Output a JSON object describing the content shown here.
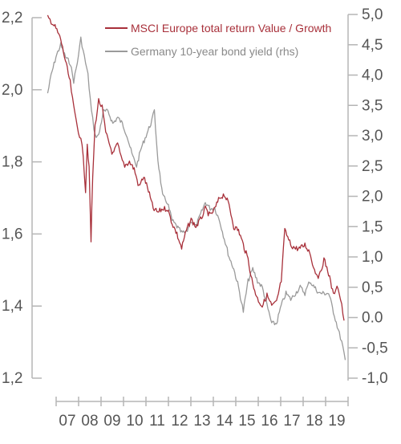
{
  "chart_data": {
    "type": "line",
    "title": "",
    "legend": {
      "position": "top-right",
      "entries": [
        "MSCI Europe total return Value / Growth",
        "Germany 10-year bond yield (rhs)"
      ]
    },
    "x_axis": {
      "tick_labels": [
        "07",
        "08",
        "09",
        "10",
        "11",
        "12",
        "13",
        "14",
        "15",
        "16",
        "17",
        "18",
        "19"
      ],
      "range": [
        2006.7,
        2019.55
      ]
    },
    "y_left": {
      "range": [
        1.2,
        2.2
      ],
      "ticks": [
        1.2,
        1.4,
        1.6,
        1.8,
        2.0,
        2.2
      ],
      "tick_labels": [
        "1,2",
        "1,4",
        "1,6",
        "1,8",
        "2,0",
        "2,2"
      ]
    },
    "y_right": {
      "range": [
        -1.0,
        5.0
      ],
      "ticks": [
        -1.0,
        -0.5,
        0.0,
        0.5,
        1.0,
        1.5,
        2.0,
        2.5,
        3.0,
        3.5,
        4.0,
        4.5,
        5.0
      ],
      "tick_labels": [
        "-1,0",
        "-0,5",
        "0.0",
        "0,5",
        "1,0",
        "1,5",
        "2,0",
        "2,5",
        "3,0",
        "3,5",
        "4,0",
        "4,5",
        "5,0"
      ]
    },
    "series": [
      {
        "name": "MSCI Europe total return Value / Growth",
        "axis": "left",
        "color": "#a8303a",
        "x": [
          2006.95,
          2007.1,
          2007.3,
          2007.5,
          2007.7,
          2007.9,
          2008.05,
          2008.2,
          2008.35,
          2008.45,
          2008.55,
          2008.62,
          2008.7,
          2008.78,
          2008.85,
          2008.95,
          2009.1,
          2009.25,
          2009.4,
          2009.5,
          2009.7,
          2009.9,
          2010.05,
          2010.2,
          2010.4,
          2010.6,
          2010.8,
          2011.0,
          2011.2,
          2011.4,
          2011.6,
          2011.8,
          2012.0,
          2012.2,
          2012.4,
          2012.6,
          2012.8,
          2013.0,
          2013.2,
          2013.4,
          2013.6,
          2013.8,
          2014.0,
          2014.2,
          2014.4,
          2014.6,
          2014.8,
          2015.0,
          2015.2,
          2015.4,
          2015.6,
          2015.8,
          2016.0,
          2016.2,
          2016.4,
          2016.6,
          2016.8,
          2016.95,
          2017.2,
          2017.4,
          2017.6,
          2017.8,
          2018.0,
          2018.2,
          2018.4,
          2018.6,
          2018.8,
          2019.0,
          2019.15,
          2019.3,
          2019.45
        ],
        "y": [
          2.2,
          2.19,
          2.17,
          2.14,
          2.08,
          2.02,
          1.95,
          1.9,
          1.86,
          1.82,
          1.72,
          1.85,
          1.78,
          1.58,
          1.76,
          1.9,
          1.97,
          1.95,
          1.88,
          1.86,
          1.82,
          1.85,
          1.81,
          1.79,
          1.8,
          1.78,
          1.73,
          1.76,
          1.72,
          1.67,
          1.66,
          1.67,
          1.67,
          1.63,
          1.6,
          1.56,
          1.61,
          1.64,
          1.62,
          1.64,
          1.67,
          1.65,
          1.67,
          1.7,
          1.71,
          1.68,
          1.62,
          1.61,
          1.57,
          1.53,
          1.46,
          1.42,
          1.4,
          1.43,
          1.4,
          1.41,
          1.47,
          1.61,
          1.57,
          1.56,
          1.56,
          1.57,
          1.55,
          1.5,
          1.48,
          1.53,
          1.49,
          1.43,
          1.46,
          1.42,
          1.36
        ]
      },
      {
        "name": "Germany 10-year bond yield (rhs)",
        "axis": "right",
        "color": "#9a9a9a",
        "x": [
          2006.95,
          2007.1,
          2007.3,
          2007.5,
          2007.7,
          2007.9,
          2008.05,
          2008.2,
          2008.35,
          2008.5,
          2008.65,
          2008.8,
          2008.95,
          2009.1,
          2009.3,
          2009.5,
          2009.7,
          2009.9,
          2010.1,
          2010.3,
          2010.5,
          2010.7,
          2010.9,
          2011.1,
          2011.3,
          2011.45,
          2011.6,
          2011.8,
          2012.0,
          2012.2,
          2012.4,
          2012.6,
          2012.8,
          2013.0,
          2013.2,
          2013.4,
          2013.6,
          2013.8,
          2014.0,
          2014.2,
          2014.4,
          2014.6,
          2014.8,
          2015.0,
          2015.2,
          2015.4,
          2015.6,
          2015.8,
          2016.0,
          2016.2,
          2016.4,
          2016.6,
          2016.8,
          2017.0,
          2017.2,
          2017.4,
          2017.6,
          2017.8,
          2018.0,
          2018.2,
          2018.4,
          2018.6,
          2018.8,
          2019.0,
          2019.2,
          2019.35,
          2019.5
        ],
        "y": [
          3.7,
          4.0,
          4.3,
          4.5,
          4.3,
          4.2,
          3.9,
          4.2,
          4.6,
          4.3,
          4.0,
          3.4,
          3.0,
          3.0,
          3.4,
          3.4,
          3.2,
          3.3,
          3.2,
          3.0,
          2.7,
          2.5,
          2.8,
          3.0,
          3.2,
          3.4,
          2.6,
          2.0,
          1.9,
          1.6,
          1.5,
          1.4,
          1.4,
          1.6,
          1.5,
          1.7,
          1.9,
          1.8,
          1.8,
          1.6,
          1.3,
          1.0,
          0.8,
          0.5,
          0.1,
          0.6,
          0.8,
          0.6,
          0.5,
          0.2,
          -0.1,
          -0.1,
          0.2,
          0.4,
          0.3,
          0.4,
          0.5,
          0.4,
          0.6,
          0.5,
          0.4,
          0.4,
          0.4,
          0.1,
          -0.2,
          -0.4,
          -0.7
        ]
      }
    ]
  }
}
